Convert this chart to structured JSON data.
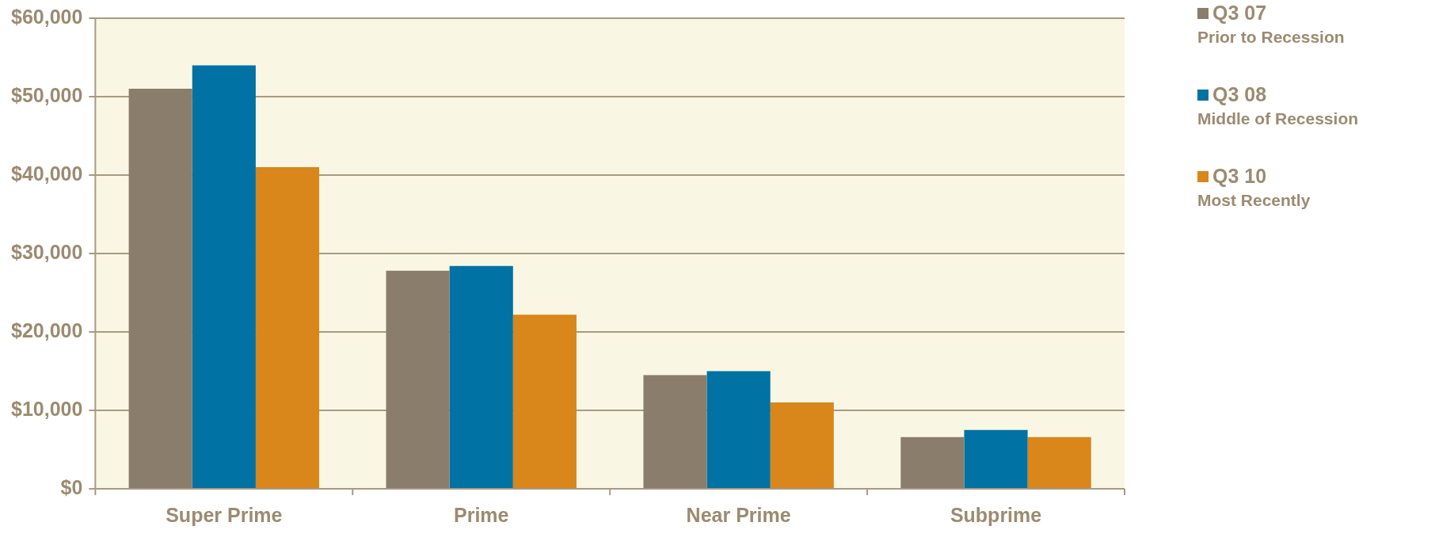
{
  "chart_data": {
    "type": "bar",
    "categories": [
      "Super Prime",
      "Prime",
      "Near Prime",
      "Subprime"
    ],
    "series": [
      {
        "name": "Q3 07\nPrior to Recession",
        "color": "#8b7d6b",
        "values": [
          51000,
          27800,
          14500,
          6600
        ]
      },
      {
        "name": "Q3 08\nMiddle of Recession",
        "color": "#0072a3",
        "values": [
          54000,
          28400,
          15000,
          7500
        ]
      },
      {
        "name": "Q3 10\nMost Recently",
        "color": "#d9861a",
        "values": [
          41000,
          22200,
          11000,
          6600
        ]
      }
    ],
    "ylim": [
      0,
      60000
    ],
    "yticks": [
      {
        "value": 0,
        "label": "$0"
      },
      {
        "value": 10000,
        "label": "$10,000"
      },
      {
        "value": 20000,
        "label": "$20,000"
      },
      {
        "value": 30000,
        "label": "$30,000"
      },
      {
        "value": 40000,
        "label": "$40,000"
      },
      {
        "value": 50000,
        "label": "$50,000"
      },
      {
        "value": 60000,
        "label": "$60,000"
      }
    ],
    "grid": "y",
    "legend": "top right"
  }
}
